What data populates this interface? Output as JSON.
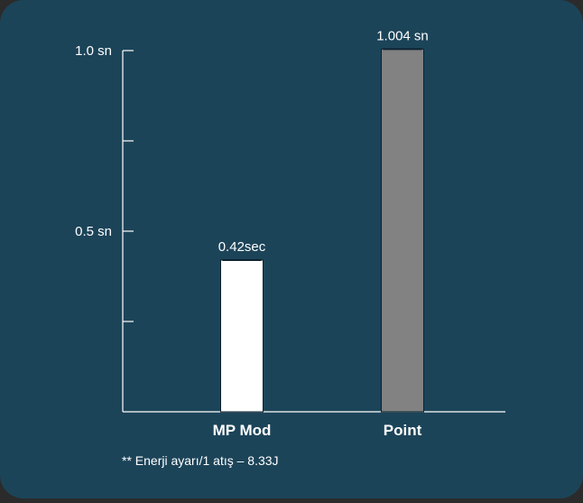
{
  "chart_data": {
    "type": "bar",
    "categories": [
      "MP Mod",
      "Point"
    ],
    "values": [
      0.42,
      1.004
    ],
    "data_labels": [
      "0.42sec",
      "1.004 sn"
    ],
    "bar_colors": [
      "#ffffff",
      "#828282"
    ],
    "y_ticks": [
      {
        "value": 1.0,
        "label": "1.0 sn"
      },
      {
        "value": 0.75,
        "label": ""
      },
      {
        "value": 0.5,
        "label": "0.5 sn"
      },
      {
        "value": 0.25,
        "label": ""
      }
    ],
    "ylim": [
      0,
      1.0
    ],
    "grid": false,
    "title": "",
    "xlabel": "",
    "ylabel": ""
  },
  "footnote": "** Enerji ayarı/1 atış – 8.33J",
  "colors": {
    "background": "#1c4459",
    "axis": "#ffffff",
    "text": "#ffffff"
  }
}
